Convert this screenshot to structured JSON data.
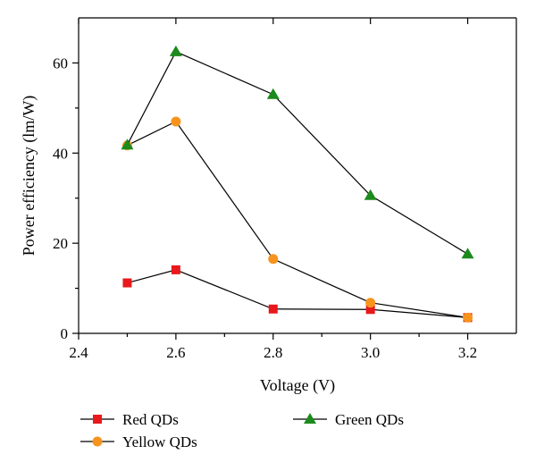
{
  "chart_data": {
    "type": "line",
    "title": "",
    "xlabel": "Voltage (V)",
    "ylabel": "Power efficiency (lm/W)",
    "xlim": [
      2.4,
      3.3
    ],
    "ylim": [
      0,
      70
    ],
    "xticks": [
      2.4,
      2.6,
      2.8,
      3.0,
      3.2
    ],
    "xtick_labels": [
      "2.4",
      "2.6",
      "2.8",
      "3.0",
      "3.2"
    ],
    "yticks": [
      0,
      20,
      40,
      60
    ],
    "ytick_labels": [
      "0",
      "20",
      "40",
      "60"
    ],
    "grid": false,
    "legend_position": "bottom",
    "series": [
      {
        "name": "Red QDs",
        "marker": "square",
        "color": "#e8181c",
        "x": [
          2.5,
          2.6,
          2.8,
          3.0,
          3.2
        ],
        "y": [
          11.2,
          14.1,
          5.4,
          5.3,
          3.5
        ]
      },
      {
        "name": "Yellow QDs",
        "marker": "circle",
        "color": "#f7941d",
        "x": [
          2.5,
          2.6,
          2.8,
          3.0,
          3.2
        ],
        "y": [
          41.7,
          47.0,
          16.5,
          6.8,
          3.5
        ]
      },
      {
        "name": "Green QDs",
        "marker": "triangle",
        "color": "#1c8a1c",
        "x": [
          2.5,
          2.6,
          2.8,
          3.0,
          3.2
        ],
        "y": [
          41.8,
          62.5,
          53.0,
          30.6,
          17.6
        ]
      }
    ]
  }
}
